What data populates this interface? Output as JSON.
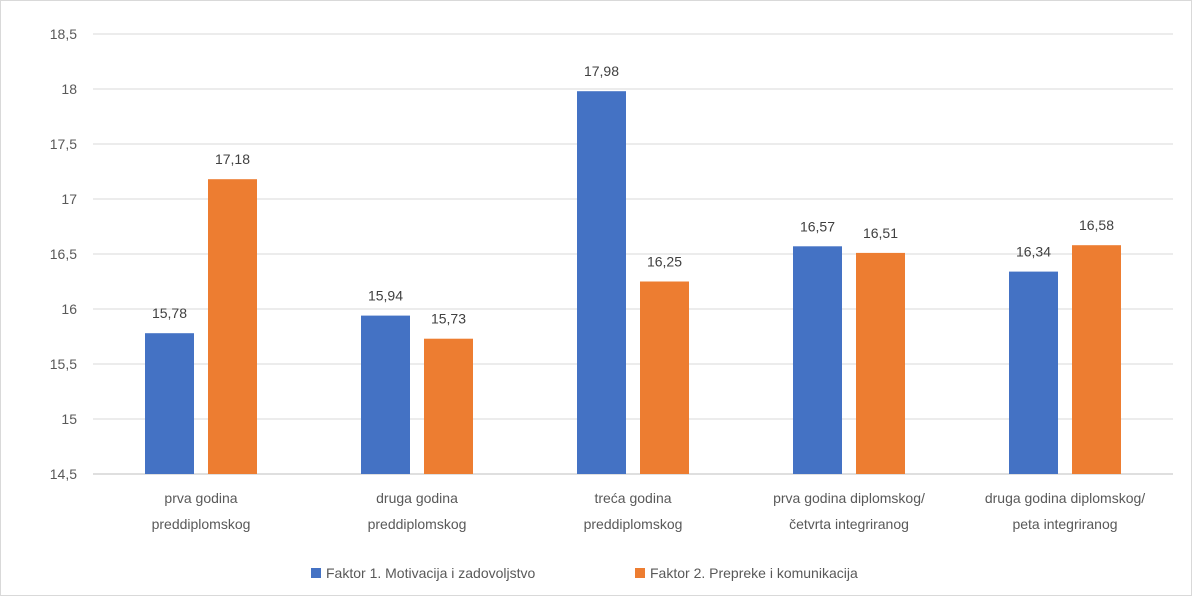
{
  "chart_data": {
    "type": "bar",
    "categories": [
      [
        "prva godina",
        "preddiplomskog"
      ],
      [
        "druga godina",
        "preddiplomskog"
      ],
      [
        "treća godina",
        "preddiplomskog"
      ],
      [
        "prva godina diplomskog/",
        "četvrta integriranog"
      ],
      [
        "druga godina diplomskog/",
        "peta integriranog"
      ]
    ],
    "series": [
      {
        "name": "Faktor 1. Motivacija i zadovoljstvo",
        "color": "#4472C4",
        "values": [
          15.78,
          15.94,
          17.98,
          16.57,
          16.34
        ],
        "labels": [
          "15,78",
          "15,94",
          "17,98",
          "16,57",
          "16,34"
        ]
      },
      {
        "name": "Faktor 2. Prepreke i komunikacija",
        "color": "#ED7D31",
        "values": [
          17.18,
          15.73,
          16.25,
          16.51,
          16.58
        ],
        "labels": [
          "17,18",
          "15,73",
          "16,25",
          "16,51",
          "16,58"
        ]
      }
    ],
    "ylim": [
      14.5,
      18.5
    ],
    "y_ticks": [
      14.5,
      15,
      15.5,
      16,
      16.5,
      17,
      17.5,
      18,
      18.5
    ],
    "y_tick_labels": [
      "14,5",
      "15",
      "15,5",
      "16",
      "16,5",
      "17",
      "17,5",
      "18",
      "18,5"
    ],
    "grid": true,
    "legend_position": "bottom",
    "title": "",
    "xlabel": "",
    "ylabel": ""
  }
}
